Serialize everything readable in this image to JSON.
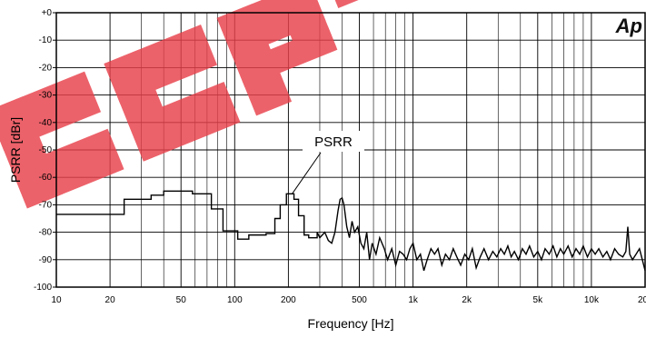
{
  "chart_data": {
    "type": "line",
    "xlabel": "Frequency [Hz]",
    "ylabel": "PSRR [dBr]",
    "xscale": "log",
    "xlim": [
      10,
      20000
    ],
    "ylim": [
      -100,
      0
    ],
    "grid": true,
    "x_ticks": [
      {
        "value": 10,
        "label": "10"
      },
      {
        "value": 20,
        "label": "20"
      },
      {
        "value": 50,
        "label": "50"
      },
      {
        "value": 100,
        "label": "100"
      },
      {
        "value": 200,
        "label": "200"
      },
      {
        "value": 500,
        "label": "500"
      },
      {
        "value": 1000,
        "label": "1k"
      },
      {
        "value": 2000,
        "label": "2k"
      },
      {
        "value": 5000,
        "label": "5k"
      },
      {
        "value": 10000,
        "label": "10k"
      },
      {
        "value": 20000,
        "label": "20k"
      }
    ],
    "y_ticks": [
      {
        "value": 0,
        "label": "+0"
      },
      {
        "value": -10,
        "label": "-10"
      },
      {
        "value": -20,
        "label": "-20"
      },
      {
        "value": -30,
        "label": "-30"
      },
      {
        "value": -40,
        "label": "-40"
      },
      {
        "value": -50,
        "label": "-50"
      },
      {
        "value": -60,
        "label": "-60"
      },
      {
        "value": -70,
        "label": "-70"
      },
      {
        "value": -80,
        "label": "-80"
      },
      {
        "value": -90,
        "label": "-90"
      },
      {
        "value": -100,
        "label": "-100"
      }
    ],
    "annotation": {
      "text": "PSRR",
      "target": [
        210,
        -66
      ]
    },
    "series": [
      {
        "color": "#000000",
        "points": [
          [
            10,
            -73.5
          ],
          [
            24,
            -73.5
          ],
          [
            24,
            -68
          ],
          [
            34,
            -68
          ],
          [
            34,
            -66.5
          ],
          [
            40,
            -66.5
          ],
          [
            40,
            -65
          ],
          [
            58,
            -65
          ],
          [
            58,
            -66
          ],
          [
            74,
            -66
          ],
          [
            74,
            -71.5
          ],
          [
            86,
            -71.5
          ],
          [
            86,
            -79.5
          ],
          [
            104,
            -79.5
          ],
          [
            104,
            -82.5
          ],
          [
            120,
            -82.5
          ],
          [
            120,
            -81
          ],
          [
            150,
            -81
          ],
          [
            150,
            -80.5
          ],
          [
            168,
            -80.5
          ],
          [
            168,
            -75
          ],
          [
            180,
            -75
          ],
          [
            180,
            -70
          ],
          [
            195,
            -70
          ],
          [
            195,
            -66
          ],
          [
            215,
            -66
          ],
          [
            215,
            -68
          ],
          [
            228,
            -68
          ],
          [
            228,
            -74
          ],
          [
            245,
            -74
          ],
          [
            245,
            -81
          ],
          [
            260,
            -81
          ],
          [
            260,
            -82
          ],
          [
            290,
            -82
          ],
          [
            290,
            -80
          ],
          [
            300,
            -82
          ],
          [
            320,
            -80
          ],
          [
            335,
            -83
          ],
          [
            350,
            -84
          ],
          [
            365,
            -80
          ],
          [
            380,
            -72
          ],
          [
            390,
            -68
          ],
          [
            400,
            -67.5
          ],
          [
            410,
            -70
          ],
          [
            425,
            -78
          ],
          [
            440,
            -82
          ],
          [
            455,
            -76
          ],
          [
            470,
            -80
          ],
          [
            490,
            -78
          ],
          [
            510,
            -84
          ],
          [
            530,
            -86
          ],
          [
            550,
            -80
          ],
          [
            570,
            -90
          ],
          [
            590,
            -84
          ],
          [
            620,
            -88
          ],
          [
            650,
            -82
          ],
          [
            690,
            -86
          ],
          [
            720,
            -90
          ],
          [
            760,
            -86
          ],
          [
            800,
            -92
          ],
          [
            840,
            -87
          ],
          [
            880,
            -88
          ],
          [
            920,
            -90
          ],
          [
            960,
            -86
          ],
          [
            1000,
            -84
          ],
          [
            1050,
            -90
          ],
          [
            1100,
            -88
          ],
          [
            1150,
            -94
          ],
          [
            1200,
            -90
          ],
          [
            1260,
            -86
          ],
          [
            1320,
            -88
          ],
          [
            1380,
            -86
          ],
          [
            1450,
            -92
          ],
          [
            1520,
            -88
          ],
          [
            1600,
            -90
          ],
          [
            1680,
            -86
          ],
          [
            1760,
            -89
          ],
          [
            1850,
            -92
          ],
          [
            1950,
            -88
          ],
          [
            2050,
            -90
          ],
          [
            2150,
            -86
          ],
          [
            2260,
            -93
          ],
          [
            2380,
            -89
          ],
          [
            2500,
            -86
          ],
          [
            2650,
            -90
          ],
          [
            2800,
            -87
          ],
          [
            2950,
            -89
          ],
          [
            3100,
            -86
          ],
          [
            3250,
            -88
          ],
          [
            3400,
            -85
          ],
          [
            3550,
            -89
          ],
          [
            3700,
            -87
          ],
          [
            3900,
            -90
          ],
          [
            4100,
            -86
          ],
          [
            4300,
            -88
          ],
          [
            4500,
            -85
          ],
          [
            4750,
            -89
          ],
          [
            5000,
            -87
          ],
          [
            5250,
            -90
          ],
          [
            5500,
            -86
          ],
          [
            5800,
            -88
          ],
          [
            6100,
            -85
          ],
          [
            6400,
            -89
          ],
          [
            6700,
            -86
          ],
          [
            7000,
            -88
          ],
          [
            7400,
            -85
          ],
          [
            7800,
            -89
          ],
          [
            8200,
            -86
          ],
          [
            8600,
            -88
          ],
          [
            9000,
            -85
          ],
          [
            9500,
            -89
          ],
          [
            10000,
            -86
          ],
          [
            10500,
            -88
          ],
          [
            11000,
            -86
          ],
          [
            11600,
            -89
          ],
          [
            12200,
            -87
          ],
          [
            12800,
            -90
          ],
          [
            13500,
            -86
          ],
          [
            14200,
            -88
          ],
          [
            15000,
            -89
          ],
          [
            15600,
            -87
          ],
          [
            16000,
            -78
          ],
          [
            16400,
            -88
          ],
          [
            17000,
            -90
          ],
          [
            17800,
            -88
          ],
          [
            18600,
            -86
          ],
          [
            19300,
            -90
          ],
          [
            20000,
            -94
          ]
        ]
      }
    ]
  },
  "logo_text": "Ap",
  "watermark_text": "EEPW",
  "watermark_color": "#e8404a"
}
